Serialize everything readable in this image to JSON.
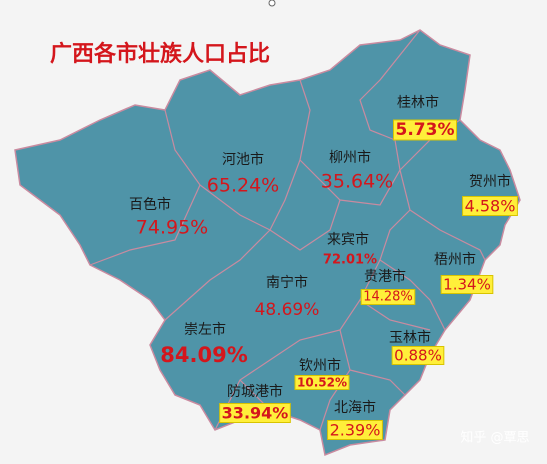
{
  "title": "广西各市壮族人口占比",
  "regions": [
    {
      "name": "桂林市",
      "share": "5.73%"
    },
    {
      "name": "河池市",
      "share": "65.24%"
    },
    {
      "name": "柳州市",
      "share": "35.64%"
    },
    {
      "name": "贺州市",
      "share": "4.58%"
    },
    {
      "name": "百色市",
      "share": "74.95%"
    },
    {
      "name": "来宾市",
      "share": "72.01%"
    },
    {
      "name": "梧州市",
      "share": "1.34%"
    },
    {
      "name": "贵港市",
      "share": "14.28%"
    },
    {
      "name": "南宁市",
      "share": "48.69%"
    },
    {
      "name": "崇左市",
      "share": "84.09%"
    },
    {
      "name": "玉林市",
      "share": "0.88%"
    },
    {
      "name": "钦州市",
      "share": "10.52%"
    },
    {
      "name": "防城港市",
      "share": "33.94%"
    },
    {
      "name": "北海市",
      "share": "2.39%"
    }
  ],
  "watermark": "知乎 @覃思"
}
